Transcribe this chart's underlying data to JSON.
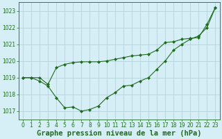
{
  "line1_x": [
    0,
    1,
    2,
    3,
    4,
    5,
    6,
    7,
    8,
    9,
    10,
    11,
    12,
    13,
    14,
    15,
    16,
    17,
    18,
    19,
    20,
    21,
    22,
    23
  ],
  "line1_y": [
    1019.0,
    1019.0,
    1019.0,
    1018.6,
    1019.6,
    1019.8,
    1019.9,
    1019.95,
    1019.95,
    1019.95,
    1020.0,
    1020.1,
    1020.2,
    1020.3,
    1020.35,
    1020.4,
    1020.65,
    1021.1,
    1021.15,
    1021.3,
    1021.35,
    1021.4,
    1022.2,
    1023.2
  ],
  "line2_x": [
    0,
    1,
    2,
    3,
    4,
    5,
    6,
    7,
    8,
    9,
    10,
    11,
    12,
    13,
    14,
    15,
    16,
    17,
    18,
    19,
    20,
    21,
    22,
    23
  ],
  "line2_y": [
    1019.0,
    1019.0,
    1018.8,
    1018.5,
    1017.8,
    1017.2,
    1017.25,
    1017.0,
    1017.1,
    1017.3,
    1017.8,
    1018.1,
    1018.5,
    1018.55,
    1018.8,
    1019.0,
    1019.5,
    1020.0,
    1020.65,
    1021.0,
    1021.3,
    1021.5,
    1022.0,
    1023.2
  ],
  "ylim": [
    1016.5,
    1023.5
  ],
  "xlim": [
    -0.5,
    23.5
  ],
  "yticks": [
    1017,
    1018,
    1019,
    1020,
    1021,
    1022,
    1023
  ],
  "xticks": [
    0,
    1,
    2,
    3,
    4,
    5,
    6,
    7,
    8,
    9,
    10,
    11,
    12,
    13,
    14,
    15,
    16,
    17,
    18,
    19,
    20,
    21,
    22,
    23
  ],
  "line_color": "#1e6b1e",
  "marker": "D",
  "marker_size": 2.2,
  "bg_color": "#d6eef5",
  "grid_color": "#b0ccd4",
  "xlabel": "Graphe pression niveau de la mer (hPa)",
  "xlabel_color": "#1e6b1e",
  "tick_fontsize": 5.5,
  "xlabel_fontsize": 7.5,
  "linewidth": 0.8
}
